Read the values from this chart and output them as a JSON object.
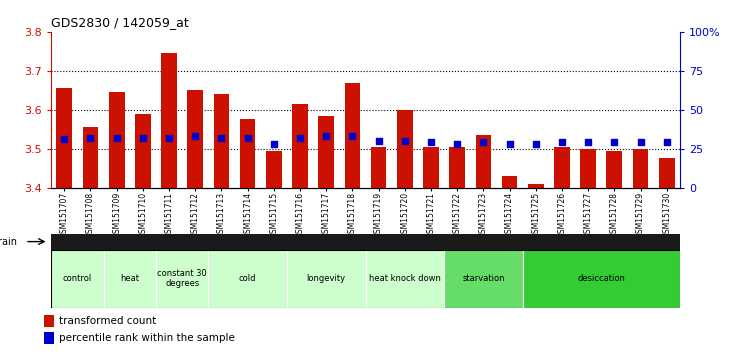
{
  "title": "GDS2830 / 142059_at",
  "samples": [
    "GSM151707",
    "GSM151708",
    "GSM151709",
    "GSM151710",
    "GSM151711",
    "GSM151712",
    "GSM151713",
    "GSM151714",
    "GSM151715",
    "GSM151716",
    "GSM151717",
    "GSM151718",
    "GSM151719",
    "GSM151720",
    "GSM151721",
    "GSM151722",
    "GSM151723",
    "GSM151724",
    "GSM151725",
    "GSM151726",
    "GSM151727",
    "GSM151728",
    "GSM151729",
    "GSM151730"
  ],
  "bar_values": [
    3.655,
    3.555,
    3.645,
    3.59,
    3.745,
    3.65,
    3.64,
    3.575,
    3.493,
    3.615,
    3.585,
    3.668,
    3.505,
    3.6,
    3.505,
    3.505,
    3.535,
    3.43,
    3.41,
    3.505,
    3.5,
    3.495,
    3.5,
    3.475
  ],
  "percentile_values": [
    31,
    32,
    32,
    32,
    32,
    33,
    32,
    32,
    28,
    32,
    33,
    33,
    30,
    30,
    29,
    28,
    29,
    28,
    28,
    29,
    29,
    29,
    29,
    29
  ],
  "bar_bottom": 3.4,
  "ylim": [
    3.4,
    3.8
  ],
  "yticks": [
    3.4,
    3.5,
    3.6,
    3.7,
    3.8
  ],
  "right_yticks": [
    0,
    25,
    50,
    75,
    100
  ],
  "right_ylim": [
    0,
    100
  ],
  "bar_color": "#cc1100",
  "dot_color": "#0000cc",
  "groups": [
    {
      "label": "control",
      "start": 0,
      "end": 2,
      "color": "#ccffcc"
    },
    {
      "label": "heat",
      "start": 2,
      "end": 4,
      "color": "#ccffcc"
    },
    {
      "label": "constant 30\ndegrees",
      "start": 4,
      "end": 6,
      "color": "#ccffcc"
    },
    {
      "label": "cold",
      "start": 6,
      "end": 9,
      "color": "#ccffcc"
    },
    {
      "label": "longevity",
      "start": 9,
      "end": 12,
      "color": "#ccffcc"
    },
    {
      "label": "heat knock down",
      "start": 12,
      "end": 15,
      "color": "#ccffcc"
    },
    {
      "label": "starvation",
      "start": 15,
      "end": 18,
      "color": "#66dd66"
    },
    {
      "label": "desiccation",
      "start": 18,
      "end": 24,
      "color": "#33cc33"
    }
  ],
  "strain_label": "strain",
  "legend_bar_label": "transformed count",
  "legend_dot_label": "percentile rank within the sample",
  "grid_color": "#000000",
  "title_color": "#000000",
  "left_axis_color": "#cc1100",
  "right_axis_color": "#0000cc",
  "x_min": -0.5,
  "x_max": 23.5
}
